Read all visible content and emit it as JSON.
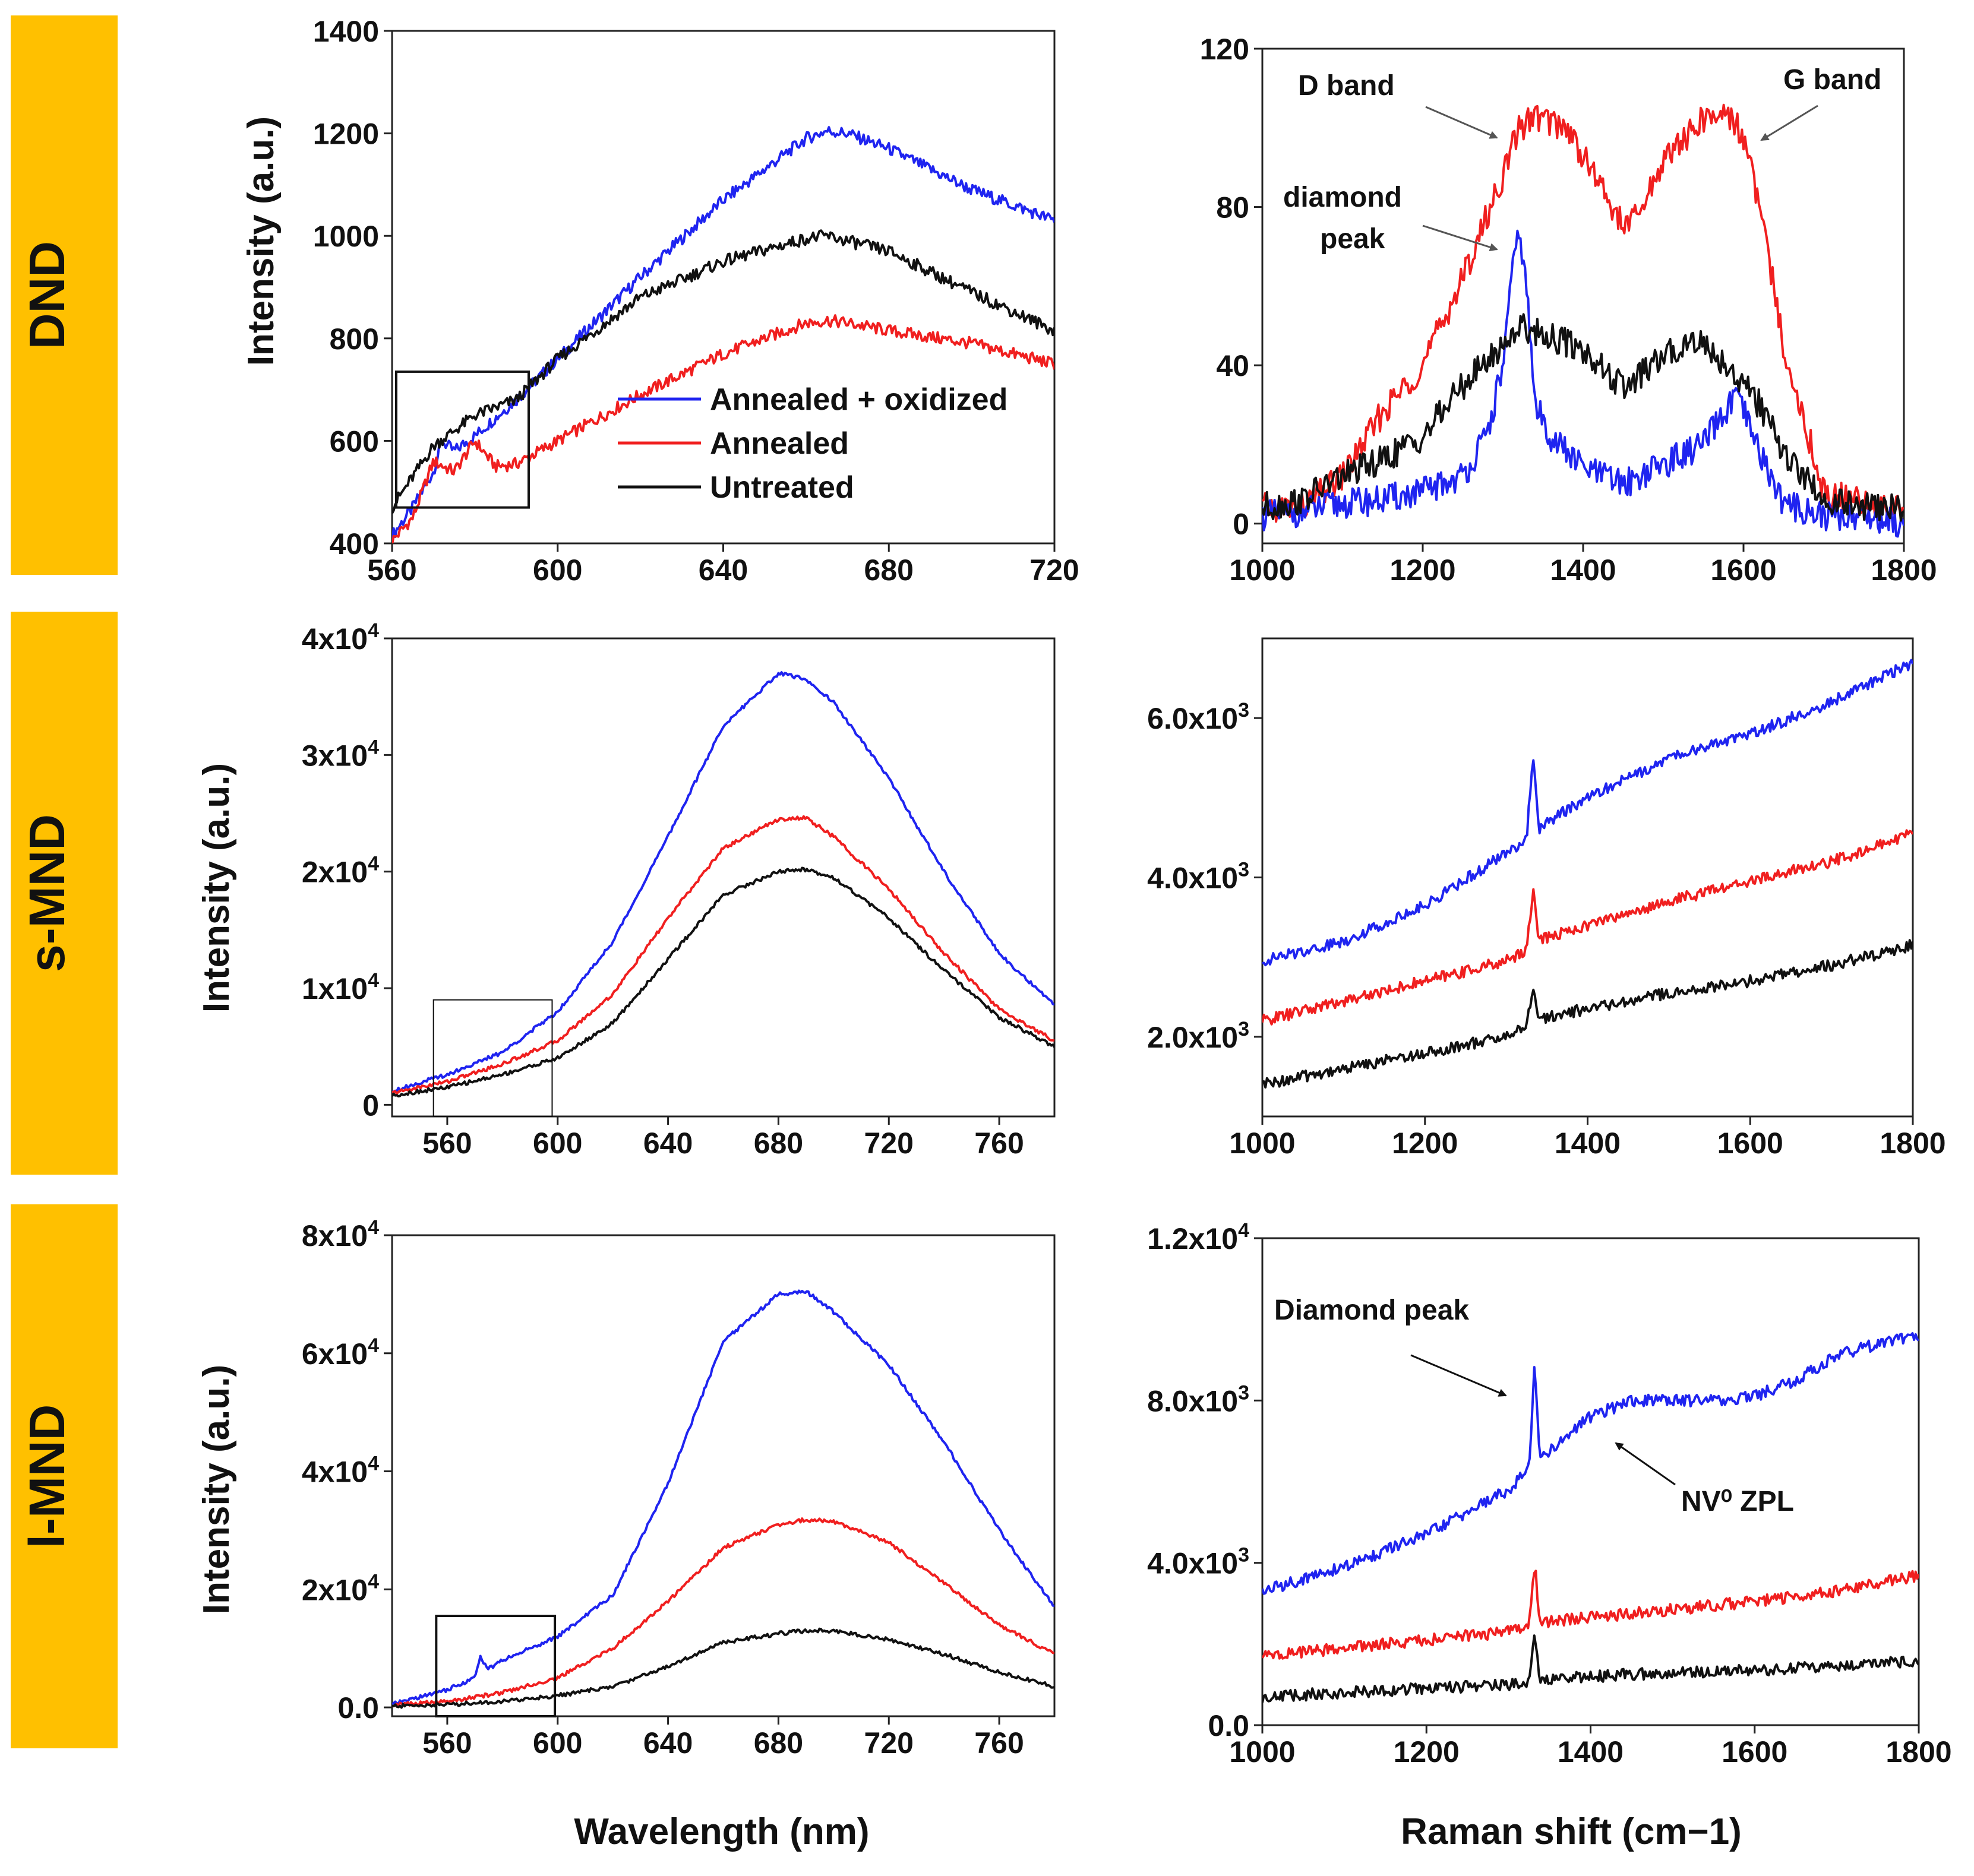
{
  "row_labels": [
    "DND",
    "s-MND",
    "l-MND"
  ],
  "row_label_color": "#FFC000",
  "series_colors": {
    "Annealed + oxidized": "#1f24f0",
    "Annealed": "#f01f1f",
    "Untreated": "#111111"
  },
  "xlabel_bottom_left": "Wavelength (nm)",
  "xlabel_bottom_right": "Raman shift (cm−1)",
  "ylabel_pl": "Intensity (a.u.)",
  "legend": [
    "Annealed + oxidized",
    "Annealed",
    "Untreated"
  ],
  "annotations": {
    "d_band": "D band",
    "g_band": "G band",
    "diamond_peak_1": "diamond",
    "diamond_peak_2": "peak",
    "diamond_peak_big": "Diamond peak",
    "nv_zpl": "NV⁰ ZPL"
  },
  "chart_data": [
    {
      "id": "dnd_pl",
      "type": "line",
      "title": "",
      "ylabel": "Intensity (a.u.)",
      "xlabel": "",
      "xlim": [
        560,
        720
      ],
      "ylim": [
        400,
        1400
      ],
      "xticks": [
        "560",
        "600",
        "640",
        "680",
        "720"
      ],
      "yticks": [
        "400",
        "600",
        "800",
        "1000",
        "1200",
        "1400"
      ],
      "series": [
        {
          "name": "Annealed + oxidized",
          "x": [
            560,
            565,
            570,
            572,
            575,
            580,
            590,
            600,
            620,
            640,
            660,
            665,
            670,
            680,
            700,
            720
          ],
          "y": [
            415,
            470,
            540,
            600,
            580,
            610,
            680,
            760,
            920,
            1070,
            1190,
            1205,
            1200,
            1170,
            1090,
            1030
          ]
        },
        {
          "name": "Annealed",
          "x": [
            560,
            565,
            570,
            575,
            580,
            585,
            590,
            600,
            620,
            640,
            660,
            665,
            670,
            680,
            700,
            720
          ],
          "y": [
            405,
            450,
            560,
            540,
            600,
            550,
            555,
            600,
            690,
            770,
            830,
            835,
            830,
            815,
            790,
            750
          ]
        },
        {
          "name": "Untreated",
          "x": [
            560,
            565,
            570,
            575,
            580,
            590,
            600,
            620,
            640,
            660,
            665,
            680,
            700,
            720
          ],
          "y": [
            470,
            530,
            590,
            620,
            650,
            680,
            760,
            880,
            950,
            995,
            1000,
            970,
            890,
            815
          ]
        }
      ],
      "inset_box": {
        "x0": 561,
        "x1": 593,
        "y0": 470,
        "y1": 735
      }
    },
    {
      "id": "dnd_raman",
      "type": "line",
      "title": "",
      "xlabel": "",
      "ylabel": "",
      "xlim": [
        1000,
        1800
      ],
      "ylim": [
        -5,
        120
      ],
      "xticks": [
        "1000",
        "1200",
        "1400",
        "1600",
        "1800"
      ],
      "yticks": [
        "0",
        "40",
        "80",
        "120"
      ],
      "series": [
        {
          "name": "Annealed",
          "x": [
            1000,
            1050,
            1100,
            1150,
            1200,
            1250,
            1300,
            1320,
            1340,
            1380,
            1420,
            1450,
            1470,
            1500,
            1550,
            1580,
            1600,
            1620,
            1650,
            1700,
            1750,
            1800
          ],
          "y": [
            4,
            4,
            12,
            28,
            40,
            62,
            88,
            100,
            103,
            100,
            86,
            75,
            78,
            92,
            102,
            104,
            98,
            80,
            45,
            8,
            5,
            4
          ]
        },
        {
          "name": "Annealed + oxidized",
          "x": [
            1000,
            1050,
            1100,
            1150,
            1200,
            1250,
            1280,
            1300,
            1310,
            1320,
            1330,
            1340,
            1360,
            1400,
            1450,
            1500,
            1550,
            1590,
            1600,
            1620,
            1650,
            1700,
            1750,
            1800
          ],
          "y": [
            2,
            3,
            5,
            6,
            8,
            12,
            22,
            40,
            60,
            75,
            58,
            30,
            22,
            14,
            10,
            15,
            20,
            32,
            28,
            18,
            5,
            2,
            2,
            0
          ]
        },
        {
          "name": "Untreated",
          "x": [
            1000,
            1050,
            1100,
            1150,
            1200,
            1250,
            1300,
            1320,
            1350,
            1400,
            1450,
            1500,
            1540,
            1580,
            1620,
            1650,
            1700,
            1750,
            1800
          ],
          "y": [
            4,
            6,
            12,
            16,
            22,
            35,
            45,
            50,
            48,
            44,
            34,
            42,
            47,
            40,
            30,
            18,
            6,
            4,
            4
          ]
        }
      ]
    },
    {
      "id": "smnd_pl",
      "type": "line",
      "title": "",
      "ylabel": "Intensity (a.u.)",
      "xlabel": "",
      "xlim": [
        540,
        780
      ],
      "ylim": [
        -1000,
        40000
      ],
      "xticks": [
        "560",
        "600",
        "640",
        "680",
        "720",
        "760"
      ],
      "yticks": [
        "0",
        "1x10^4",
        "2x10^4",
        "3x10^4",
        "4x10^4"
      ],
      "series": [
        {
          "name": "Annealed + oxidized",
          "x": [
            540,
            560,
            580,
            600,
            620,
            640,
            660,
            680,
            690,
            700,
            720,
            740,
            760,
            780
          ],
          "y": [
            1200,
            2600,
            4500,
            8000,
            14000,
            23000,
            32500,
            37000,
            36500,
            34500,
            28000,
            20000,
            13000,
            8500
          ]
        },
        {
          "name": "Annealed",
          "x": [
            540,
            560,
            580,
            600,
            620,
            640,
            660,
            680,
            690,
            700,
            720,
            740,
            760,
            780
          ],
          "y": [
            1000,
            2000,
            3500,
            5500,
            9500,
            16000,
            22000,
            24500,
            24600,
            23000,
            18500,
            13000,
            8200,
            5500
          ]
        },
        {
          "name": "Untreated",
          "x": [
            540,
            560,
            580,
            600,
            620,
            640,
            660,
            680,
            690,
            700,
            720,
            740,
            760,
            780
          ],
          "y": [
            800,
            1500,
            2600,
            4000,
            7000,
            12500,
            18000,
            20000,
            20200,
            19500,
            16000,
            11500,
            7500,
            5000
          ]
        }
      ],
      "inset_box": {
        "x0": 555,
        "x1": 598,
        "y0": -1000,
        "y1": 9000
      }
    },
    {
      "id": "smnd_raman",
      "type": "line",
      "title": "",
      "xlabel": "",
      "ylabel": "",
      "xlim": [
        1000,
        1800
      ],
      "ylim": [
        1000,
        7000
      ],
      "xticks": [
        "1000",
        "1200",
        "1400",
        "1600",
        "1800"
      ],
      "yticks": [
        "2.0x10^3",
        "4.0x10^3",
        "6.0x10^3"
      ],
      "series": [
        {
          "name": "Annealed + oxidized",
          "x": [
            1000,
            1100,
            1200,
            1300,
            1325,
            1333,
            1340,
            1350,
            1400,
            1500,
            1600,
            1700,
            1800
          ],
          "y": [
            2950,
            3200,
            3650,
            4300,
            4500,
            5500,
            4600,
            4700,
            5000,
            5500,
            5800,
            6200,
            6700
          ]
        },
        {
          "name": "Annealed",
          "x": [
            1000,
            1100,
            1200,
            1300,
            1325,
            1333,
            1340,
            1350,
            1400,
            1500,
            1600,
            1700,
            1800
          ],
          "y": [
            2200,
            2450,
            2700,
            2950,
            3100,
            3850,
            3200,
            3250,
            3400,
            3700,
            3950,
            4200,
            4550
          ]
        },
        {
          "name": "Untreated",
          "x": [
            1000,
            1100,
            1200,
            1300,
            1325,
            1333,
            1340,
            1350,
            1400,
            1500,
            1600,
            1700,
            1800
          ],
          "y": [
            1400,
            1600,
            1800,
            2000,
            2150,
            2600,
            2200,
            2250,
            2350,
            2550,
            2700,
            2900,
            3150
          ]
        }
      ]
    },
    {
      "id": "lmnd_pl",
      "type": "line",
      "title": "",
      "ylabel": "Intensity (a.u.)",
      "xlabel": "Wavelength (nm)",
      "xlim": [
        540,
        780
      ],
      "ylim": [
        -1500,
        80000
      ],
      "xticks": [
        "560",
        "600",
        "640",
        "680",
        "720",
        "760"
      ],
      "yticks": [
        "0.0",
        "2x10^4",
        "4x10^4",
        "6x10^4",
        "8x10^4"
      ],
      "series": [
        {
          "name": "Annealed + oxidized",
          "x": [
            540,
            560,
            570,
            572,
            575,
            580,
            600,
            620,
            640,
            660,
            680,
            690,
            700,
            720,
            740,
            760,
            780
          ],
          "y": [
            500,
            3000,
            5000,
            8500,
            6500,
            8000,
            12000,
            19000,
            38000,
            62000,
            70000,
            70500,
            67000,
            58000,
            45000,
            30000,
            17000
          ]
        },
        {
          "name": "Annealed",
          "x": [
            540,
            560,
            580,
            600,
            620,
            640,
            660,
            680,
            690,
            700,
            720,
            740,
            760,
            780
          ],
          "y": [
            400,
            1000,
            2500,
            5000,
            10000,
            18000,
            27000,
            31000,
            31800,
            31500,
            28000,
            21000,
            14000,
            9000
          ]
        },
        {
          "name": "Untreated",
          "x": [
            540,
            560,
            580,
            600,
            620,
            640,
            660,
            680,
            690,
            700,
            720,
            740,
            760,
            780
          ],
          "y": [
            200,
            500,
            1000,
            2000,
            3500,
            7000,
            11000,
            12500,
            13000,
            13000,
            11500,
            9000,
            6000,
            3500
          ]
        }
      ],
      "inset_box": {
        "x0": 556,
        "x1": 599,
        "y0": -1500,
        "y1": 15500
      }
    },
    {
      "id": "lmnd_raman",
      "type": "line",
      "title": "",
      "xlabel": "Raman shift (cm−1)",
      "ylabel": "",
      "xlim": [
        1000,
        1800
      ],
      "ylim": [
        0,
        12000
      ],
      "xticks": [
        "1000",
        "1200",
        "1400",
        "1600",
        "1800"
      ],
      "yticks": [
        "0.0",
        "4.0x10^3",
        "8.0x10^3",
        "1.2x10^4"
      ],
      "series": [
        {
          "name": "Annealed + oxidized",
          "x": [
            1000,
            1100,
            1200,
            1300,
            1325,
            1332,
            1338,
            1345,
            1400,
            1450,
            1500,
            1550,
            1600,
            1650,
            1700,
            1750,
            1800
          ],
          "y": [
            3300,
            3900,
            4700,
            5800,
            6300,
            9000,
            6500,
            6700,
            7600,
            8000,
            8000,
            8000,
            8100,
            8500,
            9100,
            9400,
            9600
          ]
        },
        {
          "name": "Annealed",
          "x": [
            1000,
            1100,
            1200,
            1300,
            1325,
            1332,
            1338,
            1350,
            1400,
            1500,
            1600,
            1700,
            1800
          ],
          "y": [
            1700,
            1900,
            2100,
            2300,
            2450,
            4000,
            2550,
            2550,
            2650,
            2850,
            3050,
            3300,
            3700
          ]
        },
        {
          "name": "Untreated",
          "x": [
            1000,
            1100,
            1200,
            1300,
            1325,
            1332,
            1338,
            1350,
            1400,
            1500,
            1600,
            1700,
            1800
          ],
          "y": [
            700,
            800,
            900,
            1000,
            1100,
            2200,
            1150,
            1150,
            1200,
            1300,
            1350,
            1450,
            1600
          ]
        }
      ]
    }
  ]
}
